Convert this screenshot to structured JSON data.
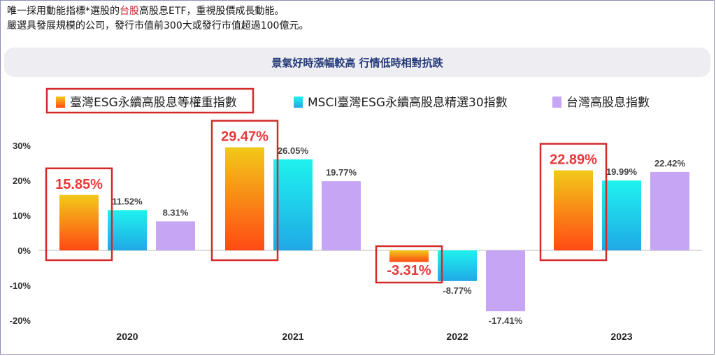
{
  "intro": {
    "line1_before": "唯一採用動能指標*選股的",
    "line1_highlight": "台股",
    "line1_after": "高股息ETF，重視股價成長動能。",
    "line2": "嚴選具發展規模的公司，發行市值前300大或發行市值超過100億元。"
  },
  "banner_title": "景氣好時漲幅較高 行情低時相對抗跌",
  "chart_data": {
    "type": "bar",
    "categories": [
      "2020",
      "2021",
      "2022",
      "2023"
    ],
    "ylim": [
      -20,
      30
    ],
    "yticks": [
      "-20%",
      "-10%",
      "0%",
      "10%",
      "20%",
      "30%"
    ],
    "legend_position": "top",
    "series": [
      {
        "name": "臺灣ESG永續高股息等權重指數",
        "values": [
          15.85,
          29.47,
          -3.31,
          22.89
        ],
        "labels": [
          "15.85%",
          "29.47%",
          "-3.31%",
          "22.89%"
        ],
        "colors": [
          "#f2c919",
          "#ff4a14"
        ],
        "highlighted": true
      },
      {
        "name": "MSCI臺灣ESG永續高股息精選30指數",
        "values": [
          11.52,
          26.05,
          -8.77,
          19.99
        ],
        "labels": [
          "11.52%",
          "26.05%",
          "-8.77%",
          "19.99%"
        ],
        "colors": [
          "#1ff2ee",
          "#1fa9e6"
        ]
      },
      {
        "name": "台灣高股息指數",
        "values": [
          8.31,
          19.77,
          -17.41,
          22.42
        ],
        "labels": [
          "8.31%",
          "19.77%",
          "-17.41%",
          "22.42%"
        ],
        "colors": [
          "#c6a6f4",
          "#c6a6f4"
        ]
      }
    ]
  },
  "colors": {
    "highlight_box": "#d42a2a",
    "highlight_text": "#e8393a",
    "label_text": "#444444",
    "banner_text": "#243a7a"
  }
}
